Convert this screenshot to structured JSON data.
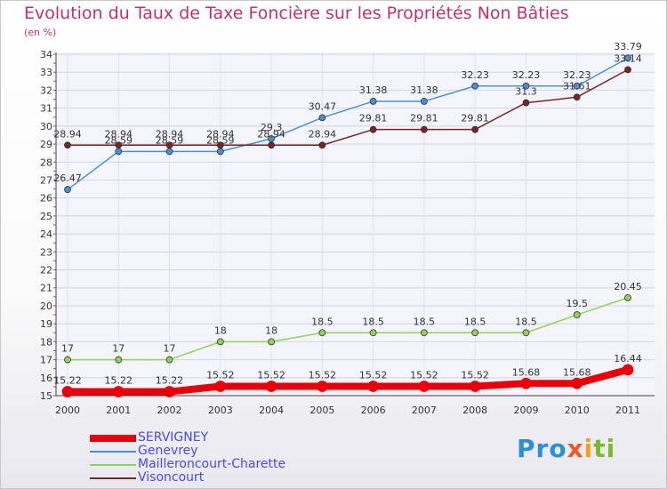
{
  "chart_data": {
    "type": "line",
    "title": "Evolution du Taux de Taxe Foncière sur les Propriétés Non Bâties",
    "ylabel": "(en %)",
    "x": [
      "2000",
      "2001",
      "2002",
      "2003",
      "2004",
      "2005",
      "2006",
      "2007",
      "2008",
      "2009",
      "2010",
      "2011"
    ],
    "ylim": [
      15,
      34
    ],
    "yticks": [
      15,
      16,
      17,
      18,
      19,
      20,
      21,
      22,
      23,
      24,
      25,
      26,
      27,
      28,
      29,
      30,
      31,
      32,
      33,
      34
    ],
    "grid": true,
    "legend_position": "bottom-left",
    "series": [
      {
        "name": "SERVIGNEY",
        "color": "#e8000b",
        "values": [
          15.22,
          15.22,
          15.22,
          15.52,
          15.52,
          15.52,
          15.52,
          15.52,
          15.52,
          15.68,
          15.68,
          16.44
        ],
        "labels": [
          "15.22",
          "15.22",
          "15.22",
          "15.52",
          "15.52",
          "15.52",
          "15.52",
          "15.52",
          "15.52",
          "15.68",
          "15.68",
          "16.44"
        ]
      },
      {
        "name": "Genevrey",
        "color": "#4a90d0",
        "values": [
          26.47,
          28.59,
          28.59,
          28.59,
          29.3,
          30.47,
          31.38,
          31.38,
          32.23,
          32.23,
          32.23,
          33.79
        ],
        "labels": [
          "26.47",
          "28.59",
          "28.59",
          "28.59",
          "29.3",
          "30.47",
          "31.38",
          "31.38",
          "32.23",
          "32.23",
          "32.23",
          "33.79"
        ]
      },
      {
        "name": "Mailleroncourt-Charette",
        "color": "#8fd35a",
        "values": [
          17,
          17,
          17,
          18,
          18,
          18.5,
          18.5,
          18.5,
          18.5,
          18.5,
          19.5,
          20.45
        ],
        "labels": [
          "17",
          "17",
          "17",
          "18",
          "18",
          "18.5",
          "18.5",
          "18.5",
          "18.5",
          "18.5",
          "19.5",
          "20.45"
        ]
      },
      {
        "name": "Visoncourt",
        "color": "#7a2525",
        "values": [
          28.94,
          28.94,
          28.94,
          28.94,
          28.94,
          28.94,
          29.81,
          29.81,
          29.81,
          31.3,
          31.61,
          33.14
        ],
        "labels": [
          "28.94",
          "28.94",
          "28.94",
          "28.94",
          "28.94",
          "28.94",
          "29.81",
          "29.81",
          "29.81",
          "31.3",
          "31.61",
          "33.14"
        ]
      }
    ]
  },
  "logo": {
    "part1": "Pro",
    "part2": "x",
    "part3": "i",
    "part4": "ti"
  }
}
